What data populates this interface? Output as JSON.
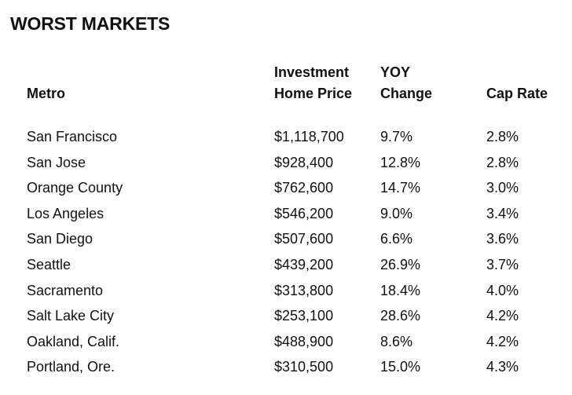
{
  "title": "WORST MARKETS",
  "headers": {
    "metro": "Metro",
    "price_line1": "Investment",
    "price_line2": "Home Price",
    "yoy_line1": "YOY",
    "yoy_line2": "Change",
    "cap": "Cap Rate"
  },
  "rows": [
    {
      "metro": "San Francisco",
      "price": "$1,118,700",
      "yoy": "9.7%",
      "cap": "2.8%"
    },
    {
      "metro": "San Jose",
      "price": "$928,400",
      "yoy": "12.8%",
      "cap": "2.8%"
    },
    {
      "metro": "Orange County",
      "price": "$762,600",
      "yoy": "14.7%",
      "cap": "3.0%"
    },
    {
      "metro": "Los Angeles",
      "price": "$546,200",
      "yoy": "9.0%",
      "cap": "3.4%"
    },
    {
      "metro": "San Diego",
      "price": "$507,600",
      "yoy": "6.6%",
      "cap": "3.6%"
    },
    {
      "metro": "Seattle",
      "price": "$439,200",
      "yoy": "26.9%",
      "cap": "3.7%"
    },
    {
      "metro": "Sacramento",
      "price": "$313,800",
      "yoy": "18.4%",
      "cap": "4.0%"
    },
    {
      "metro": "Salt Lake City",
      "price": "$253,100",
      "yoy": "28.6%",
      "cap": "4.2%"
    },
    {
      "metro": "Oakland, Calif.",
      "price": "$488,900",
      "yoy": "8.6%",
      "cap": "4.2%"
    },
    {
      "metro": "Portland, Ore.",
      "price": "$310,500",
      "yoy": "15.0%",
      "cap": "4.3%"
    }
  ]
}
